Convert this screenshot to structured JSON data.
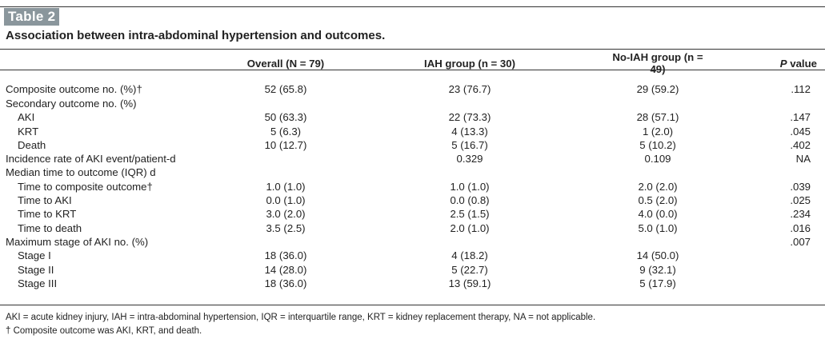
{
  "label": "Table 2",
  "title": "Association between intra-abdominal hypertension and outcomes.",
  "columns": [
    "",
    "Overall (N = 79)",
    "IAH group (n = 30)",
    "No-IAH group (n = 49)",
    "P value"
  ],
  "rows": [
    {
      "label": "Composite outcome no. (%)†",
      "indent": false,
      "cells": [
        "52 (65.8)",
        "23 (76.7)",
        "29 (59.2)",
        ".112"
      ]
    },
    {
      "label": "Secondary outcome no. (%)",
      "indent": false,
      "cells": [
        "",
        "",
        "",
        ""
      ]
    },
    {
      "label": "AKI",
      "indent": true,
      "cells": [
        "50 (63.3)",
        "22 (73.3)",
        "28 (57.1)",
        ".147"
      ]
    },
    {
      "label": "KRT",
      "indent": true,
      "cells": [
        "5 (6.3)",
        "4 (13.3)",
        "1 (2.0)",
        ".045"
      ]
    },
    {
      "label": "Death",
      "indent": true,
      "cells": [
        "10 (12.7)",
        "5 (16.7)",
        "5 (10.2)",
        ".402"
      ]
    },
    {
      "label": "Incidence rate of AKI event/patient-d",
      "indent": false,
      "cells": [
        "",
        "0.329",
        "0.109",
        "NA"
      ]
    },
    {
      "label": "Median time to outcome (IQR) d",
      "indent": false,
      "cells": [
        "",
        "",
        "",
        ""
      ]
    },
    {
      "label": "Time to composite outcome†",
      "indent": true,
      "cells": [
        "1.0 (1.0)",
        "1.0 (1.0)",
        "2.0 (2.0)",
        ".039"
      ]
    },
    {
      "label": "Time to AKI",
      "indent": true,
      "cells": [
        "0.0 (1.0)",
        "0.0 (0.8)",
        "0.5 (2.0)",
        ".025"
      ]
    },
    {
      "label": "Time to KRT",
      "indent": true,
      "cells": [
        "3.0 (2.0)",
        "2.5 (1.5)",
        "4.0 (0.0)",
        ".234"
      ]
    },
    {
      "label": "Time to death",
      "indent": true,
      "cells": [
        "3.5 (2.5)",
        "2.0 (1.0)",
        "5.0 (1.0)",
        ".016"
      ]
    },
    {
      "label": "Maximum stage of AKI no. (%)",
      "indent": false,
      "cells": [
        "",
        "",
        "",
        ".007"
      ]
    },
    {
      "label": "Stage I",
      "indent": true,
      "cells": [
        "18 (36.0)",
        "4 (18.2)",
        "14 (50.0)",
        ""
      ]
    },
    {
      "label": "Stage II",
      "indent": true,
      "cells": [
        "14 (28.0)",
        "5 (22.7)",
        "9 (32.1)",
        ""
      ]
    },
    {
      "label": "Stage III",
      "indent": true,
      "cells": [
        "18 (36.0)",
        "13 (59.1)",
        "5 (17.9)",
        ""
      ]
    }
  ],
  "footnotes": [
    "AKI = acute kidney injury, IAH = intra-abdominal hypertension, IQR = interquartile range, KRT = kidney replacement therapy, NA = not applicable.",
    "† Composite outcome was AKI, KRT, and death."
  ]
}
